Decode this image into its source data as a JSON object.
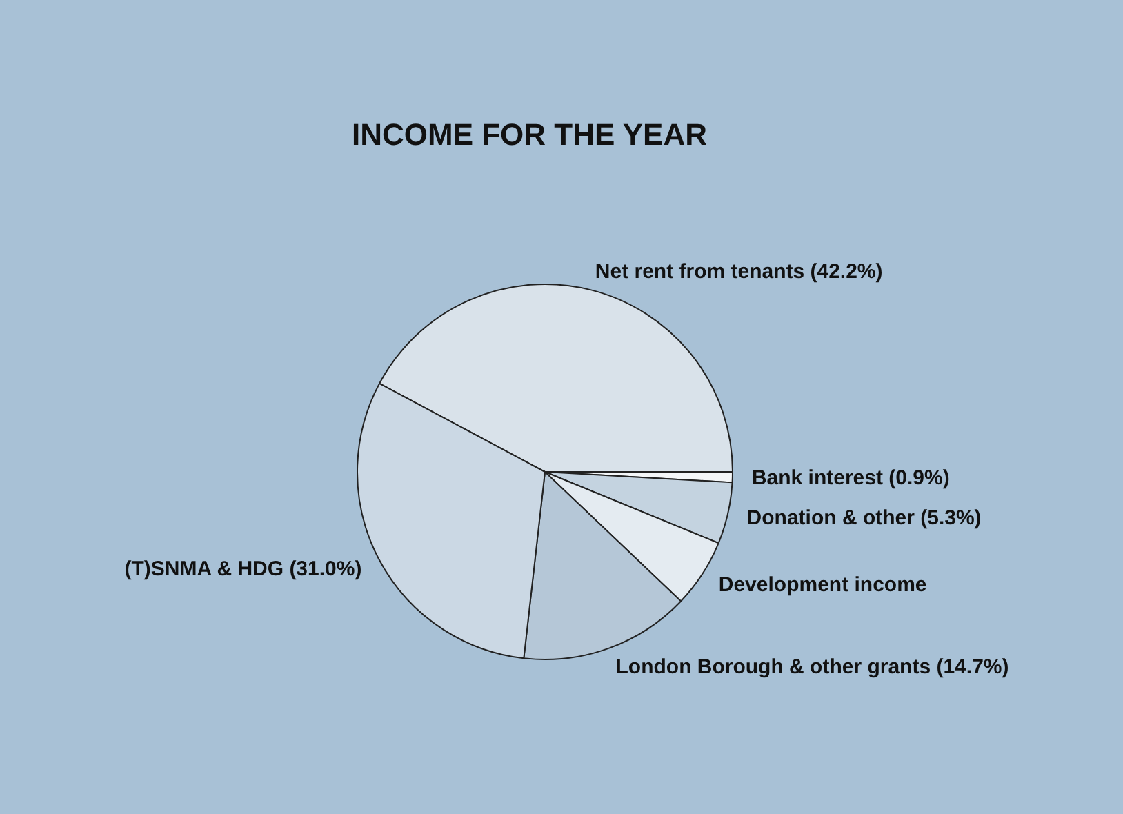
{
  "chart_data": {
    "type": "pie",
    "title": "INCOME FOR THE YEAR",
    "categories": [
      "Net rent from tenants (42.2%)",
      "Bank interest (0.9%)",
      "Donation & other (5.3%)",
      "Development income",
      "London Borough & other grants (14.7%)",
      "(T)SNMA & HDG (31.0%)"
    ],
    "values": [
      42.2,
      0.9,
      5.3,
      5.9,
      14.7,
      31.0
    ],
    "colors": [
      "#d9e2ea",
      "#f4f6f8",
      "#c4d3e0",
      "#e4ebf1",
      "#b5c7d7",
      "#cbd8e4"
    ],
    "legend": false
  }
}
